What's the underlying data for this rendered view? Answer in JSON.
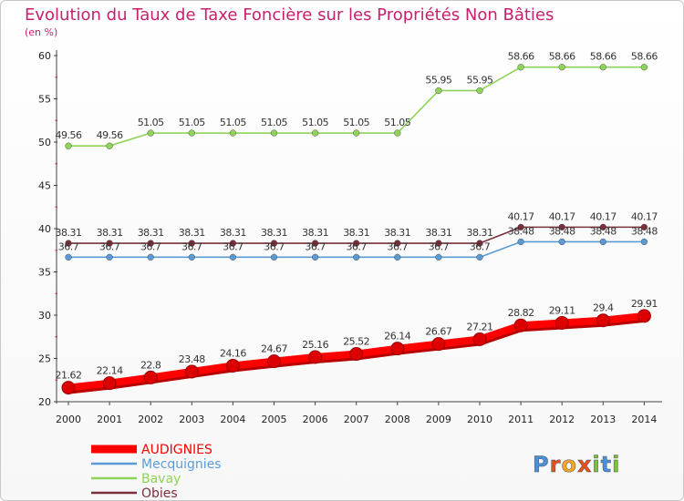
{
  "chart_data": {
    "type": "line",
    "title": "Evolution du Taux de Taxe Foncière sur les Propriétés Non Bâties",
    "subtitle": "(en %)",
    "xlabel": "",
    "ylabel": "",
    "ylim": [
      20,
      60
    ],
    "yticks": [
      20,
      25,
      30,
      35,
      40,
      45,
      50,
      55,
      60
    ],
    "x": [
      "2000",
      "2001",
      "2002",
      "2003",
      "2004",
      "2005",
      "2006",
      "2007",
      "2008",
      "2009",
      "2010",
      "2011",
      "2012",
      "2013",
      "2014"
    ],
    "series": [
      {
        "name": "AUDIGNIES",
        "color": "#ff0000",
        "labels": [
          "21.62",
          "22.14",
          "22.8",
          "23.48",
          "24.16",
          "24.67",
          "25.16",
          "25.52",
          "26.14",
          "26.67",
          "27.21",
          "28.82",
          "29.11",
          "29.4",
          "29.91"
        ],
        "values": [
          21.62,
          22.14,
          22.8,
          23.48,
          24.16,
          24.67,
          25.16,
          25.52,
          26.14,
          26.67,
          27.21,
          28.82,
          29.11,
          29.4,
          29.91
        ]
      },
      {
        "name": "Mecquignies",
        "color": "#5b9bd5",
        "labels": [
          "36.7",
          "36.7",
          "36.7",
          "36.7",
          "36.7",
          "36.7",
          "36.7",
          "36.7",
          "36.7",
          "36.7",
          "36.7",
          "38.48",
          "38.48",
          "38.48",
          "38.48"
        ],
        "values": [
          36.7,
          36.7,
          36.7,
          36.7,
          36.7,
          36.7,
          36.7,
          36.7,
          36.7,
          36.7,
          36.7,
          38.48,
          38.48,
          38.48,
          38.48
        ]
      },
      {
        "name": "Bavay",
        "color": "#8fd35a",
        "labels": [
          "49.56",
          "49.56",
          "51.05",
          "51.05",
          "51.05",
          "51.05",
          "51.05",
          "51.05",
          "51.05",
          "55.95",
          "55.95",
          "58.66",
          "58.66",
          "58.66",
          "58.66"
        ],
        "values": [
          49.56,
          49.56,
          51.05,
          51.05,
          51.05,
          51.05,
          51.05,
          51.05,
          51.05,
          55.95,
          55.95,
          58.66,
          58.66,
          58.66,
          58.66
        ]
      },
      {
        "name": "Obies",
        "color": "#7a2f3a",
        "labels": [
          "38.31",
          "38.31",
          "38.31",
          "38.31",
          "38.31",
          "38.31",
          "38.31",
          "38.31",
          "38.31",
          "38.31",
          "38.31",
          "40.17",
          "40.17",
          "40.17",
          "40.17"
        ],
        "values": [
          38.31,
          38.31,
          38.31,
          38.31,
          38.31,
          38.31,
          38.31,
          38.31,
          38.31,
          38.31,
          38.31,
          40.17,
          40.17,
          40.17,
          40.17
        ]
      }
    ],
    "legend_position": "bottom-left",
    "grid": false
  },
  "logo": {
    "text": "Proxiti",
    "letter_colors": [
      "#4a90d9",
      "#e94e1b",
      "#f5a623",
      "#e94e1b",
      "#7ac143",
      "#4a90d9",
      "#7ac143"
    ]
  }
}
